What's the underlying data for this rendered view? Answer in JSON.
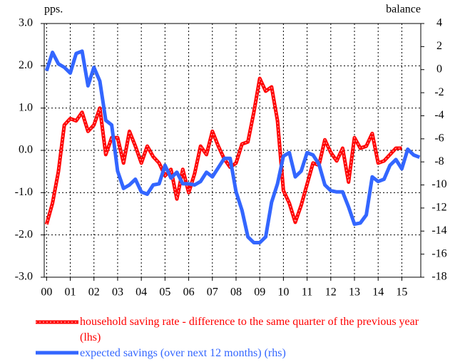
{
  "chart_data": {
    "type": "line",
    "y_label": "pps.",
    "y2_label": "balance",
    "x": [
      0,
      0.25,
      0.5,
      0.75,
      1,
      1.25,
      1.5,
      1.75,
      2,
      2.25,
      2.5,
      2.75,
      3,
      3.25,
      3.5,
      3.75,
      4,
      4.25,
      4.5,
      4.75,
      5,
      5.25,
      5.5,
      5.75,
      6,
      6.25,
      6.5,
      6.75,
      7,
      7.25,
      7.5,
      7.75,
      8,
      8.25,
      8.5,
      8.75,
      9,
      9.25,
      9.5,
      9.75,
      10,
      10.25,
      10.5,
      10.75,
      11,
      11.25,
      11.5,
      11.75,
      12,
      12.25,
      12.5,
      12.75,
      13,
      13.25,
      13.5,
      13.75,
      14,
      14.25,
      14.5,
      14.75,
      15,
      15.25,
      15.5,
      15.75
    ],
    "xlim": [
      -0.1,
      15.8
    ],
    "xticks": [
      {
        "value": 0,
        "label": "00"
      },
      {
        "value": 1,
        "label": "01"
      },
      {
        "value": 2,
        "label": "02"
      },
      {
        "value": 3,
        "label": "03"
      },
      {
        "value": 4,
        "label": "04"
      },
      {
        "value": 5,
        "label": "05"
      },
      {
        "value": 6,
        "label": "06"
      },
      {
        "value": 7,
        "label": "07"
      },
      {
        "value": 8,
        "label": "08"
      },
      {
        "value": 9,
        "label": "09"
      },
      {
        "value": 10,
        "label": "10"
      },
      {
        "value": 11,
        "label": "11"
      },
      {
        "value": 12,
        "label": "12"
      },
      {
        "value": 13,
        "label": "13"
      },
      {
        "value": 14,
        "label": "14"
      },
      {
        "value": 15,
        "label": "15"
      }
    ],
    "ylim": [
      -3,
      3
    ],
    "yticks": [
      {
        "value": 3,
        "label": "3.0"
      },
      {
        "value": 2,
        "label": "2.0"
      },
      {
        "value": 1,
        "label": "1.0"
      },
      {
        "value": 0,
        "label": "0.0"
      },
      {
        "value": -1,
        "label": "-1.0"
      },
      {
        "value": -2,
        "label": "-2.0"
      },
      {
        "value": -3,
        "label": "-3.0"
      }
    ],
    "y2lim": [
      -18,
      4
    ],
    "y2ticks": [
      4,
      2,
      0,
      -2,
      -4,
      -6,
      -8,
      -10,
      -12,
      -14,
      -16,
      -18
    ],
    "grid": true,
    "legend": "bottom",
    "series": [
      {
        "name": "household saving rate - difference to the same quarter of the previous year (lhs)",
        "color": "#ff0000",
        "axis": "y",
        "values": [
          -1.75,
          -1.25,
          -0.5,
          0.6,
          0.75,
          0.7,
          0.9,
          0.45,
          0.6,
          1.0,
          -0.1,
          0.3,
          0.3,
          -0.3,
          0.45,
          0.1,
          -0.3,
          0.1,
          -0.15,
          -0.3,
          -0.6,
          -0.45,
          -1.15,
          -0.45,
          -1.0,
          -0.55,
          0.1,
          -0.1,
          0.45,
          0.1,
          -0.2,
          -0.4,
          -0.3,
          0.15,
          0.2,
          0.9,
          1.7,
          1.4,
          1.5,
          0.7,
          -0.95,
          -1.25,
          -1.7,
          -1.3,
          -0.8,
          -0.3,
          -0.35,
          0.25,
          -0.05,
          -0.25,
          0.05,
          -0.75,
          0.3,
          0.05,
          0.1,
          0.4,
          -0.3,
          -0.25,
          -0.1,
          0.05,
          0.05,
          null,
          null,
          null
        ]
      },
      {
        "name": "expected savings (over next 12 months) (rhs)",
        "color": "#3366ff",
        "axis": "y2",
        "values": [
          -0.1,
          1.5,
          0.5,
          0.2,
          -0.3,
          1.4,
          1.6,
          -1.4,
          0.2,
          -1.0,
          -4.4,
          -4.8,
          -8.8,
          -10.3,
          -10.0,
          -9.5,
          -10.6,
          -10.8,
          -10.0,
          -9.9,
          -8.3,
          -9.4,
          -8.9,
          -9.9,
          -9.9,
          -10.0,
          -9.7,
          -8.9,
          -9.3,
          -8.5,
          -7.7,
          -7.7,
          -10.6,
          -12.2,
          -14.5,
          -15.0,
          -15.0,
          -14.5,
          -11.5,
          -9.9,
          -7.5,
          -7.2,
          -9.3,
          -8.8,
          -7.2,
          -7.4,
          -8.2,
          -10.0,
          -10.5,
          -10.6,
          -10.6,
          -11.9,
          -13.4,
          -13.3,
          -12.6,
          -9.3,
          -9.7,
          -9.5,
          -8.3,
          -7.8,
          -8.6,
          -6.9,
          -7.4,
          -7.6
        ]
      }
    ]
  }
}
